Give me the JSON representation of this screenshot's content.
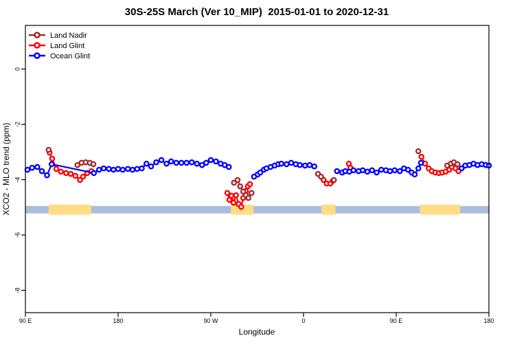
{
  "title": "30S-25S March (Ver 10_MIP)  2015-01-01 to 2020-12-31",
  "legend": [
    {
      "label": "Land Nadir",
      "color": "#A52A2A"
    },
    {
      "label": "Land Glint",
      "color": "#FF0000"
    },
    {
      "label": "Ocean Glint",
      "color": "#0000FF"
    }
  ],
  "chart_data": {
    "type": "line",
    "title": "30S-25S March (Ver 10_MIP)  2015-01-01 to 2020-12-31",
    "xlabel": "Longitude",
    "ylabel": "XCO2 - MLO trend (ppm)",
    "xlim": [
      90,
      540
    ],
    "ylim": [
      -8.8,
      1.6
    ],
    "grid": false,
    "legend_position": "top-left-inside",
    "x_ticks": [
      {
        "lon": 90,
        "label": "90 E"
      },
      {
        "lon": 180,
        "label": "180"
      },
      {
        "lon": 270,
        "label": "90 W"
      },
      {
        "lon": 360,
        "label": "0"
      },
      {
        "lon": 450,
        "label": "90 E"
      },
      {
        "lon": 540,
        "label": "180"
      }
    ],
    "y_ticks": [
      {
        "value": 0,
        "label": "0"
      },
      {
        "value": -2,
        "label": "-2"
      },
      {
        "value": -4,
        "label": "-4"
      },
      {
        "value": -6,
        "label": "-6"
      },
      {
        "value": -8,
        "label": "-8"
      }
    ],
    "series": [
      {
        "name": "Land Nadir",
        "color": "#A52A2A",
        "marker": "open-circle",
        "segments": [
          {
            "x": [
              112.5
            ],
            "y": [
              -2.92
            ]
          },
          {
            "x": [
              140.5,
              144.5,
              148.5,
              152.5,
              156
            ],
            "y": [
              -3.47,
              -3.39,
              -3.37,
              -3.39,
              -3.44
            ]
          },
          {
            "x": [
              292.5,
              296,
              298.5,
              301.5,
              304,
              306.5,
              309.5
            ],
            "y": [
              -4.11,
              -4.01,
              -4.24,
              -4.43,
              -4.56,
              -4.66,
              -4.48
            ]
          },
          {
            "x": [
              374,
              377
            ],
            "y": [
              -3.79,
              -3.89
            ]
          },
          {
            "x": [
              389.5
            ],
            "y": [
              -4.01
            ]
          },
          {
            "x": [
              471.5
            ],
            "y": [
              -2.97
            ]
          },
          {
            "x": [
              499.5,
              503,
              506,
              509.5
            ],
            "y": [
              -3.49,
              -3.42,
              -3.37,
              -3.44
            ]
          }
        ]
      },
      {
        "name": "Land Glint",
        "color": "#FF0000",
        "marker": "open-circle",
        "segments": [
          {
            "x": [
              113.5,
              116,
              120,
              124.5,
              129.5,
              134,
              138.5,
              143,
              146,
              150,
              154
            ],
            "y": [
              -3.02,
              -3.24,
              -3.61,
              -3.71,
              -3.76,
              -3.79,
              -3.86,
              -4.01,
              -3.89,
              -3.76,
              -3.69
            ]
          },
          {
            "x": [
              286,
              288,
              290,
              292,
              294.5,
              297,
              299.5,
              301.5,
              304,
              306,
              308
            ],
            "y": [
              -4.48,
              -4.73,
              -4.58,
              -4.83,
              -4.56,
              -4.88,
              -4.98,
              -4.66,
              -4.41,
              -4.24,
              -4.16
            ]
          },
          {
            "x": [
              379.5,
              382.5,
              386,
              388.5
            ],
            "y": [
              -4.01,
              -4.14,
              -4.14,
              -4.04
            ]
          },
          {
            "x": [
              404,
              405.5
            ],
            "y": [
              -3.42,
              -3.57
            ]
          },
          {
            "x": [
              474.5,
              478,
              481.5,
              484.5,
              488,
              491.5,
              494.5,
              498,
              501.5,
              504,
              507.5,
              510.5
            ],
            "y": [
              -3.17,
              -3.42,
              -3.59,
              -3.69,
              -3.74,
              -3.76,
              -3.74,
              -3.71,
              -3.64,
              -3.54,
              -3.59,
              -3.69
            ]
          }
        ]
      },
      {
        "name": "Ocean Glint",
        "color": "#0000FF",
        "marker": "open-circle",
        "segments": [
          {
            "x": [
              92,
              96.5,
              101.5,
              106,
              111,
              115.5,
              156.5,
              161.5,
              166,
              171,
              175.5,
              180,
              184.5,
              189.5,
              194,
              198.5,
              203,
              207.5,
              212,
              217,
              222,
              227,
              231.5,
              236.5,
              241.5,
              246.5,
              251.5,
              256.5,
              261.5,
              265.5,
              270,
              275,
              279.5,
              283.5,
              287.5
            ],
            "y": [
              -3.64,
              -3.57,
              -3.54,
              -3.69,
              -3.84,
              -3.44,
              -3.76,
              -3.64,
              -3.59,
              -3.61,
              -3.64,
              -3.61,
              -3.64,
              -3.61,
              -3.64,
              -3.61,
              -3.59,
              -3.42,
              -3.52,
              -3.37,
              -3.29,
              -3.42,
              -3.34,
              -3.39,
              -3.39,
              -3.39,
              -3.37,
              -3.42,
              -3.47,
              -3.39,
              -3.29,
              -3.34,
              -3.42,
              -3.47,
              -3.54
            ]
          },
          {
            "x": [
              312,
              315.5,
              318,
              321.5,
              324,
              328,
              332,
              335.5,
              338.5,
              343.5,
              348,
              352.5,
              356.5,
              361.5,
              366,
              370.5
            ],
            "y": [
              -3.89,
              -3.81,
              -3.74,
              -3.64,
              -3.59,
              -3.54,
              -3.49,
              -3.44,
              -3.42,
              -3.44,
              -3.39,
              -3.44,
              -3.47,
              -3.49,
              -3.47,
              -3.52
            ]
          },
          {
            "x": [
              392.5,
              397.5,
              400.5,
              404.5,
              408.5,
              413.5,
              417.5,
              422,
              426.5,
              431,
              435.5,
              440,
              444,
              448.5,
              453.5,
              457.5,
              461.5,
              465,
              468,
              471.5,
              474
            ],
            "y": [
              -3.69,
              -3.74,
              -3.69,
              -3.71,
              -3.66,
              -3.69,
              -3.66,
              -3.71,
              -3.66,
              -3.74,
              -3.64,
              -3.66,
              -3.69,
              -3.66,
              -3.69,
              -3.59,
              -3.64,
              -3.74,
              -3.81,
              -3.59,
              -3.39
            ]
          },
          {
            "x": [
              513.5,
              517,
              521,
              525,
              529,
              533,
              537,
              540
            ],
            "y": [
              -3.59,
              -3.49,
              -3.47,
              -3.42,
              -3.47,
              -3.44,
              -3.47,
              -3.49
            ]
          }
        ]
      }
    ],
    "land_ocean_band": {
      "description": "map strip: ocean vs land along latitude band",
      "ocean_color": "#A9BEDC",
      "land_color": "#FFDD87",
      "ocean_lon_range": [
        90,
        540
      ],
      "value_top": -4.95,
      "value_bottom": -5.22,
      "land_value_top": -4.9,
      "land_value_bottom": -5.27,
      "land_segments_lon": [
        [
          112.5,
          154
        ],
        [
          289.5,
          311.5
        ],
        [
          377.5,
          391
        ],
        [
          473,
          512
        ]
      ]
    }
  }
}
